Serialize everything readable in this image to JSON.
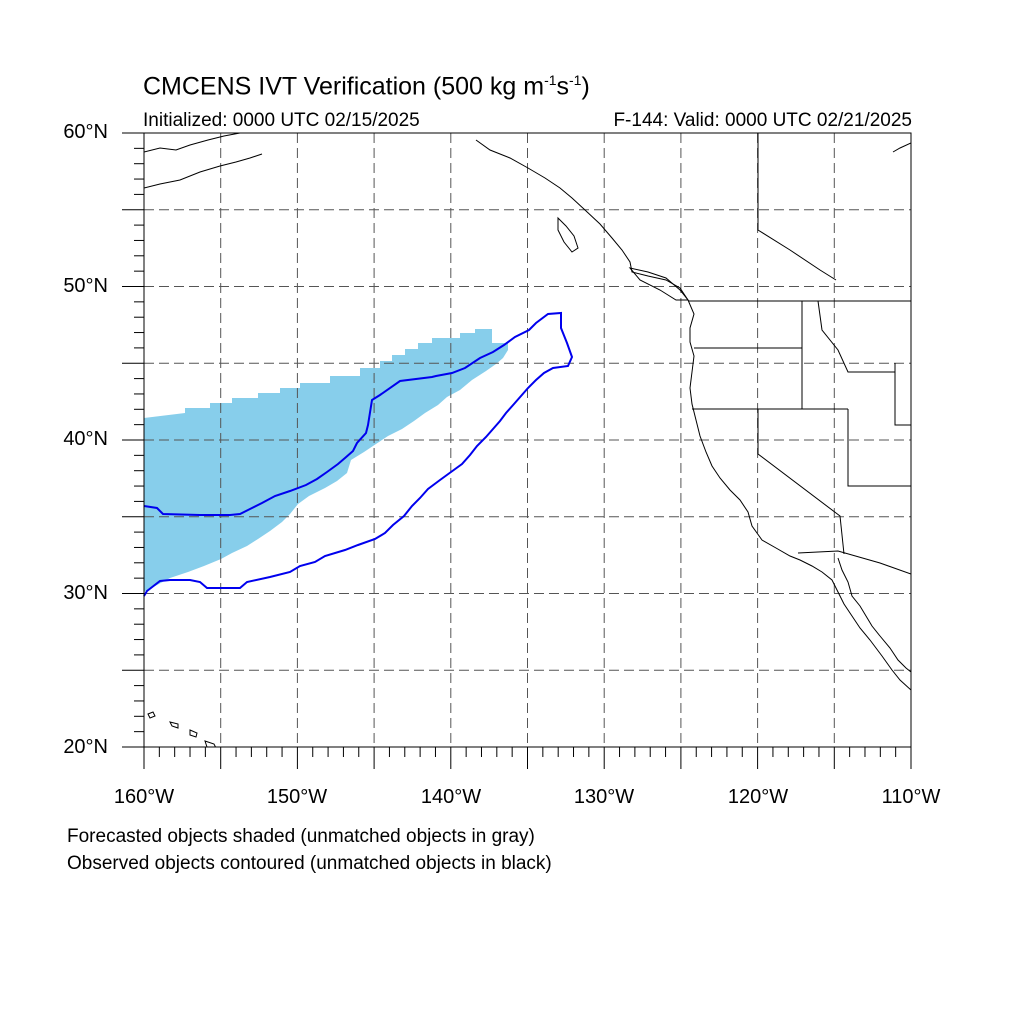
{
  "map": {
    "title_main": "CMCENS IVT Verification (500 kg m",
    "title_exp1": "-1",
    "title_s": "s",
    "title_exp2": "-1",
    "title_close": ")",
    "init_label": "Initialized: 0000 UTC 02/15/2025",
    "valid_label": "F-144: Valid: 0000 UTC 02/21/2025",
    "lat_labels": [
      "60°N",
      "50°N",
      "40°N",
      "30°N",
      "20°N"
    ],
    "lon_labels": [
      "160°W",
      "150°W",
      "140°W",
      "130°W",
      "120°W",
      "110°W"
    ],
    "extent": {
      "lon_min": -160,
      "lon_max": -110,
      "lat_min": 20,
      "lat_max": 60
    },
    "grid_interval_deg": 5,
    "colors": {
      "forecast_fill": "#87ceeb",
      "observed_contour": "#0000ee",
      "coastline": "#000000",
      "grid": "#555555"
    },
    "notes": [
      "Forecasted objects shaded (unmatched objects in gray)",
      "Observed objects contoured (unmatched objects in black)"
    ]
  }
}
